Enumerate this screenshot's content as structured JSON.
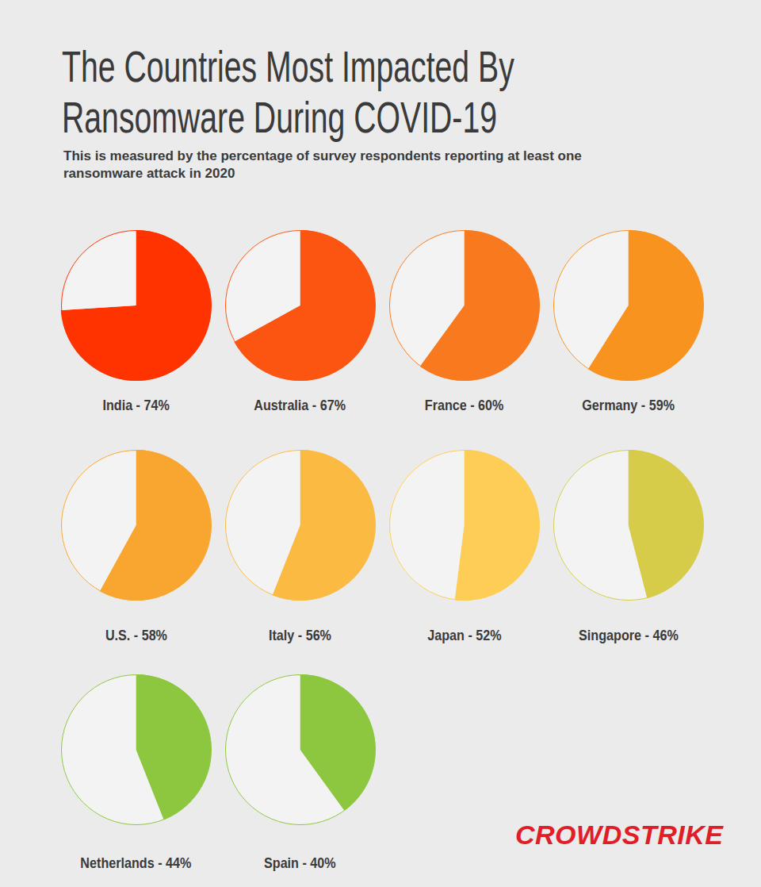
{
  "chart_data": {
    "type": "pie",
    "title": "The Countries Most Impacted By Ransomware During COVID-19",
    "subtitle": "This is measured by the percentage of survey respondents reporting at least one ransomware attack in 2020",
    "categories": [
      "India",
      "Australia",
      "France",
      "Germany",
      "U.S.",
      "Italy",
      "Japan",
      "Singapore",
      "Netherlands",
      "Spain"
    ],
    "values": [
      74,
      67,
      60,
      59,
      58,
      56,
      52,
      46,
      44,
      40
    ],
    "value_labels": [
      "74%",
      "67%",
      "60%",
      "59%",
      "58%",
      "56%",
      "52%",
      "46%",
      "44%",
      "40%"
    ],
    "colors": [
      "#ff3300",
      "#fc5512",
      "#f97a1e",
      "#f7931e",
      "#f9a630",
      "#fbba42",
      "#fdcd55",
      "#d6cc4a",
      "#8dc63f",
      "#8dc63f"
    ],
    "annotations": [
      "CROWDSTRIKE"
    ]
  }
}
